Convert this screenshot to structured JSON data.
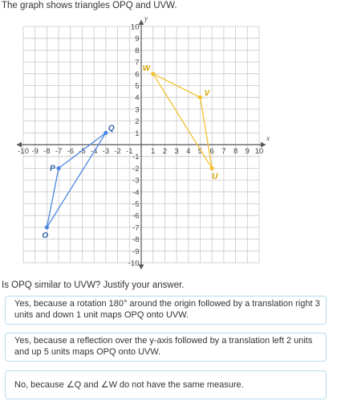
{
  "prompt": {
    "text": "The graph shows triangles OPQ and UVW."
  },
  "graph": {
    "x_axis_label": "x",
    "y_axis_label": "y",
    "x_ticks": [
      "-10",
      "-9",
      "-8",
      "-7",
      "-6",
      "-5",
      "-4",
      "-3",
      "-2",
      "-1",
      "1",
      "2",
      "3",
      "4",
      "5",
      "6",
      "7",
      "8",
      "9",
      "10"
    ],
    "y_ticks": [
      "10",
      "9",
      "8",
      "7",
      "6",
      "5",
      "4",
      "3",
      "2",
      "1",
      "-1",
      "-2",
      "-3",
      "-4",
      "-5",
      "-6",
      "-7",
      "-8",
      "-9",
      "-10"
    ],
    "colors": {
      "triangle_opq": "#4a86e0",
      "triangle_uvw": "#f2c12e",
      "label_opq": "#2f5fa8",
      "label_uvw": "#d6a200"
    }
  },
  "chart_data": {
    "type": "scatter",
    "xlim": [
      -10,
      10
    ],
    "ylim": [
      -10,
      10
    ],
    "grid": true,
    "xlabel": "x",
    "ylabel": "y",
    "series": [
      {
        "name": "OPQ",
        "points": [
          {
            "label": "O",
            "x": -8,
            "y": -7
          },
          {
            "label": "P",
            "x": -7,
            "y": -2
          },
          {
            "label": "Q",
            "x": -3,
            "y": 1
          }
        ]
      },
      {
        "name": "UVW",
        "points": [
          {
            "label": "U",
            "x": 6,
            "y": -2
          },
          {
            "label": "V",
            "x": 5,
            "y": 4
          },
          {
            "label": "W",
            "x": 1,
            "y": 6
          }
        ]
      }
    ]
  },
  "question": {
    "text": "Is OPQ similar to UVW? Justify your answer."
  },
  "choices": [
    {
      "text": "Yes, because a rotation 180° around the origin followed by a translation right 3 units and down 1 unit maps OPQ onto UVW."
    },
    {
      "text": "Yes, because a reflection over the y-axis followed by a translation left 2 units and up 5 units maps OPQ onto UVW."
    },
    {
      "text": "No, because ∠Q and ∠W do not have the same measure."
    }
  ]
}
